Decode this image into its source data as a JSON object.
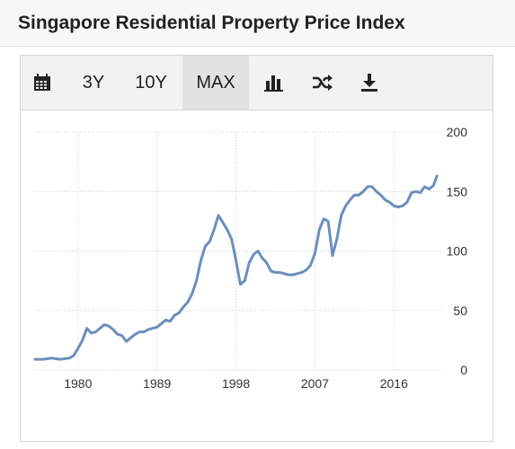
{
  "header": {
    "title": "Singapore Residential Property Price Index"
  },
  "toolbar": {
    "buttons": [
      {
        "label": "",
        "icon": "calendar-icon"
      },
      {
        "label": "3Y"
      },
      {
        "label": "10Y"
      },
      {
        "label": "MAX",
        "active": true
      },
      {
        "label": "",
        "icon": "bar-chart-icon"
      },
      {
        "label": "",
        "icon": "shuffle-icon"
      },
      {
        "label": "",
        "icon": "download-icon"
      }
    ]
  },
  "colors": {
    "line": "#6a8fbc",
    "grid": "#cccccc",
    "toolbar_bg": "#f2f2f2",
    "active_bg": "#e2e2e2"
  },
  "chart_data": {
    "type": "line",
    "title": "",
    "xlabel": "",
    "ylabel": "",
    "xlim": [
      1975,
      2021.5
    ],
    "ylim": [
      0,
      200
    ],
    "x_ticks": [
      "1980",
      "1989",
      "1998",
      "2007",
      "2016"
    ],
    "y_ticks": [
      "0",
      "50",
      "100",
      "150",
      "200"
    ],
    "grid": true,
    "y_axis_position": "right",
    "series": [
      {
        "x": [
          1975.1,
          1976,
          1977,
          1978,
          1979,
          1979.5,
          1980,
          1980.5,
          1981,
          1981.5,
          1982,
          1982.5,
          1983,
          1983.5,
          1984,
          1984.5,
          1985,
          1985.5,
          1986,
          1986.5,
          1987,
          1987.5,
          1988,
          1988.5,
          1989,
          1989.5,
          1990,
          1990.5,
          1991,
          1991.5,
          1992,
          1992.5,
          1993,
          1993.5,
          1994,
          1994.5,
          1995,
          1995.5,
          1996,
          1996.5,
          1997,
          1997.5,
          1998,
          1998.5,
          1999,
          1999.5,
          2000,
          2000.5,
          2001,
          2001.5,
          2002,
          2002.5,
          2003,
          2003.5,
          2004,
          2004.5,
          2005,
          2005.5,
          2006,
          2006.5,
          2007,
          2007.5,
          2008,
          2008.5,
          2009,
          2009.5,
          2010,
          2010.5,
          2011,
          2011.5,
          2012,
          2012.5,
          2013,
          2013.5,
          2014,
          2014.5,
          2015,
          2015.5,
          2016,
          2016.5,
          2017,
          2017.5,
          2018,
          2018.5,
          2019,
          2019.5,
          2020,
          2020.5,
          2020.9
        ],
        "y": [
          9,
          9,
          10,
          9,
          10,
          12,
          18,
          25,
          35,
          31,
          32,
          35,
          38,
          37,
          34,
          30,
          29,
          24,
          27,
          30,
          32,
          32,
          34,
          35,
          36,
          39,
          42,
          41,
          46,
          48,
          53,
          57,
          64,
          75,
          92,
          104,
          108,
          118,
          130,
          124,
          118,
          110,
          92,
          72,
          75,
          90,
          97,
          100,
          94,
          90,
          83,
          82,
          82,
          81,
          80,
          80,
          81,
          82,
          84,
          88,
          98,
          118,
          127,
          125,
          96,
          110,
          130,
          138,
          143,
          147,
          147,
          150,
          154,
          154,
          150,
          147,
          143,
          141,
          138,
          137,
          138,
          141,
          149,
          150,
          149,
          154,
          152,
          155,
          163
        ]
      }
    ]
  }
}
